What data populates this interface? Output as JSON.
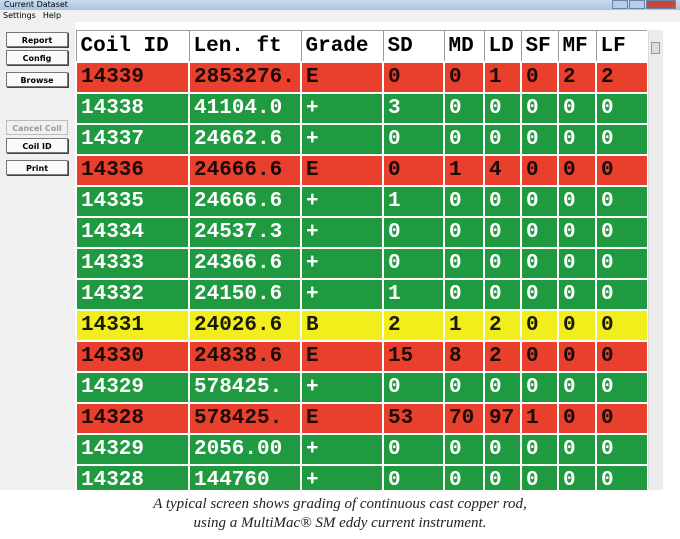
{
  "window": {
    "title": "Current Dataset"
  },
  "menu": [
    "Settings",
    "Help"
  ],
  "buttons": [
    {
      "label": "Report",
      "disabled": false
    },
    {
      "label": "Config",
      "disabled": false
    },
    {
      "label": "Browse",
      "disabled": false
    },
    {
      "label": "Cancel Coil",
      "disabled": true
    },
    {
      "label": "Coil ID",
      "disabled": false
    },
    {
      "label": "Print",
      "disabled": false
    }
  ],
  "table": {
    "headers": [
      "Coil ID",
      "Len. ft",
      "Grade",
      "SD",
      "MD",
      "LD",
      "SF",
      "MF",
      "LF"
    ],
    "rows": [
      {
        "color": "#e8402c",
        "text_color": "#1a0a08",
        "cells": [
          "14339",
          "2853276.",
          "E",
          "0",
          "0",
          "1",
          "0",
          "2",
          "2"
        ]
      },
      {
        "color": "#1f9a40",
        "text_color": "#ffffff",
        "cells": [
          "14338",
          "41104.0",
          "+",
          "3",
          "0",
          "0",
          "0",
          "0",
          "0"
        ]
      },
      {
        "color": "#1f9a40",
        "text_color": "#ffffff",
        "cells": [
          "14337",
          "24662.6",
          "+",
          "0",
          "0",
          "0",
          "0",
          "0",
          "0"
        ]
      },
      {
        "color": "#e8402c",
        "text_color": "#1a0a08",
        "cells": [
          "14336",
          "24666.6",
          "E",
          "0",
          "1",
          "4",
          "0",
          "0",
          "0"
        ]
      },
      {
        "color": "#1f9a40",
        "text_color": "#ffffff",
        "cells": [
          "14335",
          "24666.6",
          "+",
          "1",
          "0",
          "0",
          "0",
          "0",
          "0"
        ]
      },
      {
        "color": "#1f9a40",
        "text_color": "#ffffff",
        "cells": [
          "14334",
          "24537.3",
          "+",
          "0",
          "0",
          "0",
          "0",
          "0",
          "0"
        ]
      },
      {
        "color": "#1f9a40",
        "text_color": "#ffffff",
        "cells": [
          "14333",
          "24366.6",
          "+",
          "0",
          "0",
          "0",
          "0",
          "0",
          "0"
        ]
      },
      {
        "color": "#1f9a40",
        "text_color": "#ffffff",
        "cells": [
          "14332",
          "24150.6",
          "+",
          "1",
          "0",
          "0",
          "0",
          "0",
          "0"
        ]
      },
      {
        "color": "#f2ee1c",
        "text_color": "#1a1a08",
        "cells": [
          "14331",
          "24026.6",
          "B",
          "2",
          "1",
          "2",
          "0",
          "0",
          "0"
        ]
      },
      {
        "color": "#e8402c",
        "text_color": "#1a0a08",
        "cells": [
          "14330",
          "24838.6",
          "E",
          "15",
          "8",
          "2",
          "0",
          "0",
          "0"
        ]
      },
      {
        "color": "#1f9a40",
        "text_color": "#ffffff",
        "cells": [
          "14329",
          "578425.",
          "+",
          "0",
          "0",
          "0",
          "0",
          "0",
          "0"
        ]
      },
      {
        "color": "#e8402c",
        "text_color": "#1a0a08",
        "cells": [
          "14328",
          "578425.",
          "E",
          "53",
          "70",
          "97",
          "1",
          "0",
          "0"
        ]
      },
      {
        "color": "#1f9a40",
        "text_color": "#ffffff",
        "cells": [
          "14329",
          "2056.00",
          "+",
          "0",
          "0",
          "0",
          "0",
          "0",
          "0"
        ]
      },
      {
        "color": "#1f9a40",
        "text_color": "#ffffff",
        "cells": [
          "14328",
          "144760",
          "+",
          "0",
          "0",
          "0",
          "0",
          "0",
          "0"
        ]
      }
    ]
  },
  "caption": [
    "A typical screen shows grading of continuous cast copper rod,",
    "using a MultiMac® SM eddy current instrument."
  ]
}
